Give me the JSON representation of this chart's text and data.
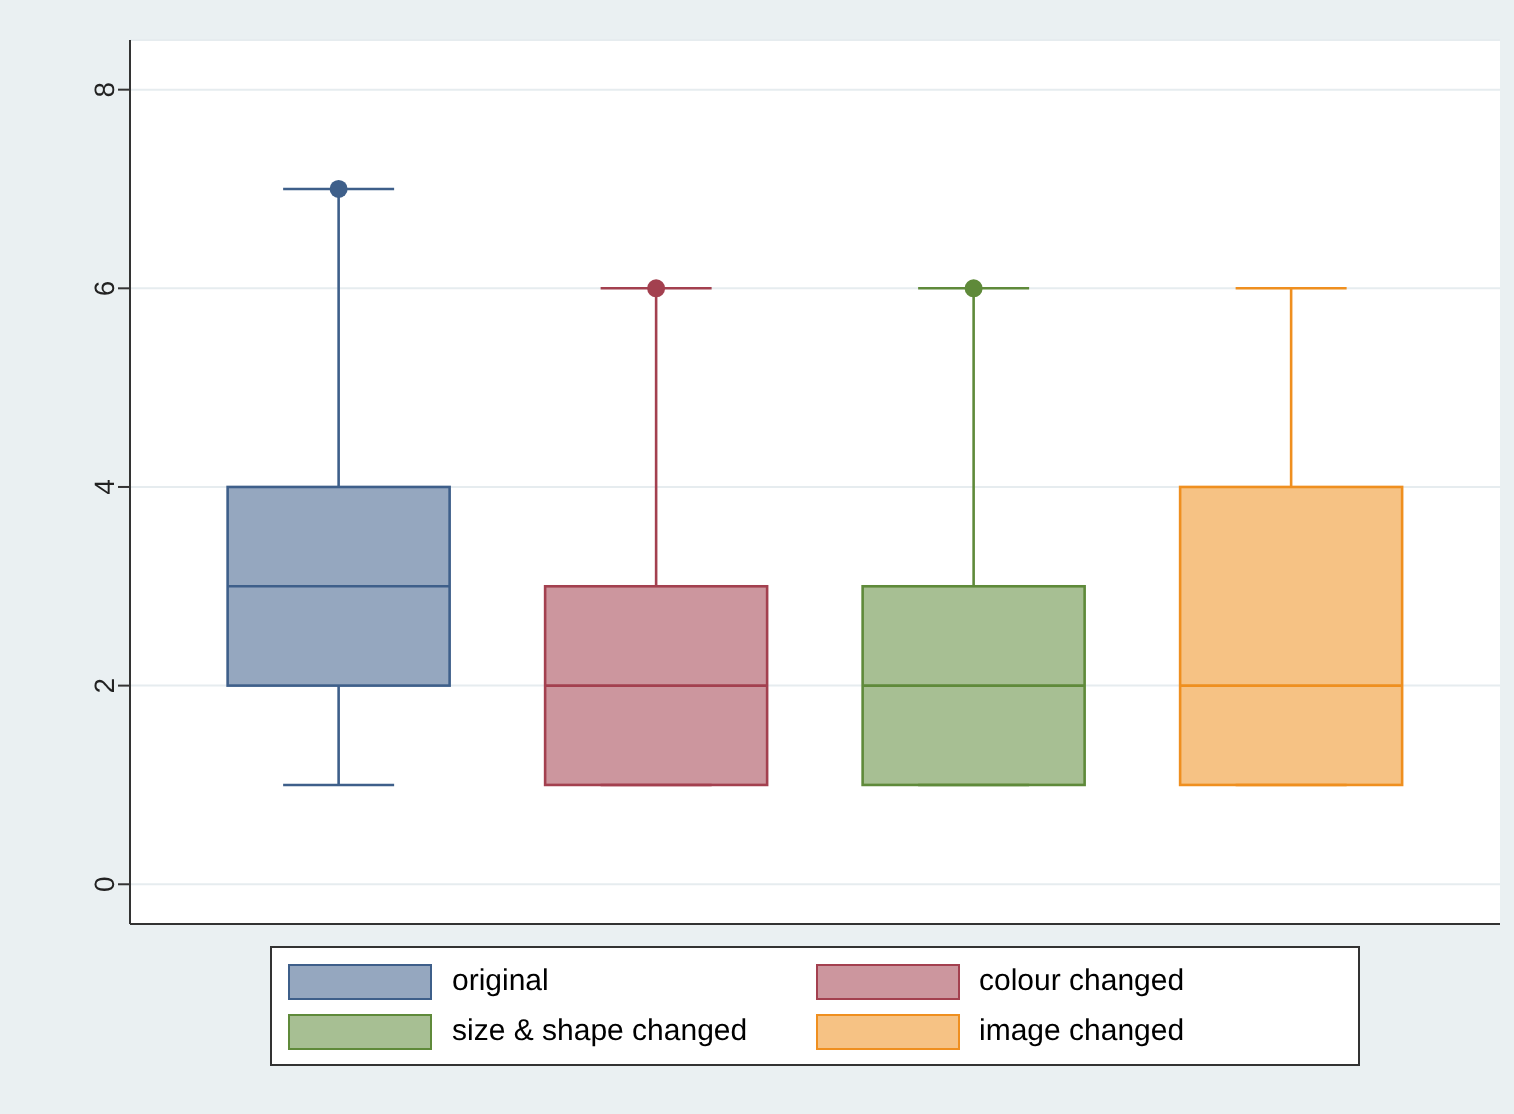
{
  "chart_data": {
    "type": "box",
    "categories": [
      null
    ],
    "series": [
      {
        "name": "original",
        "color": "#3e5f8a",
        "boxes": [
          {
            "low": 1,
            "q1": 2,
            "median": 3,
            "q3": 4,
            "high": 7,
            "outliers": [
              7
            ]
          }
        ]
      },
      {
        "name": "colour changed",
        "color": "#a3404f",
        "boxes": [
          {
            "low": 1,
            "q1": 1,
            "median": 2,
            "q3": 3,
            "high": 6,
            "outliers": [
              6
            ]
          }
        ]
      },
      {
        "name": "size & shape changed",
        "color": "#5f8a3a",
        "boxes": [
          {
            "low": 1,
            "q1": 1,
            "median": 2,
            "q3": 3,
            "high": 6,
            "outliers": [
              6
            ]
          }
        ]
      },
      {
        "name": "image changed",
        "color": "#ef8f1f",
        "boxes": [
          {
            "low": 1,
            "q1": 1,
            "median": 2,
            "q3": 4,
            "high": 6
          }
        ]
      }
    ],
    "ylim": [
      -0.4,
      8.5
    ],
    "yticks": [
      0,
      2,
      4,
      6,
      8
    ],
    "grid": "y",
    "legend": "bottom"
  }
}
